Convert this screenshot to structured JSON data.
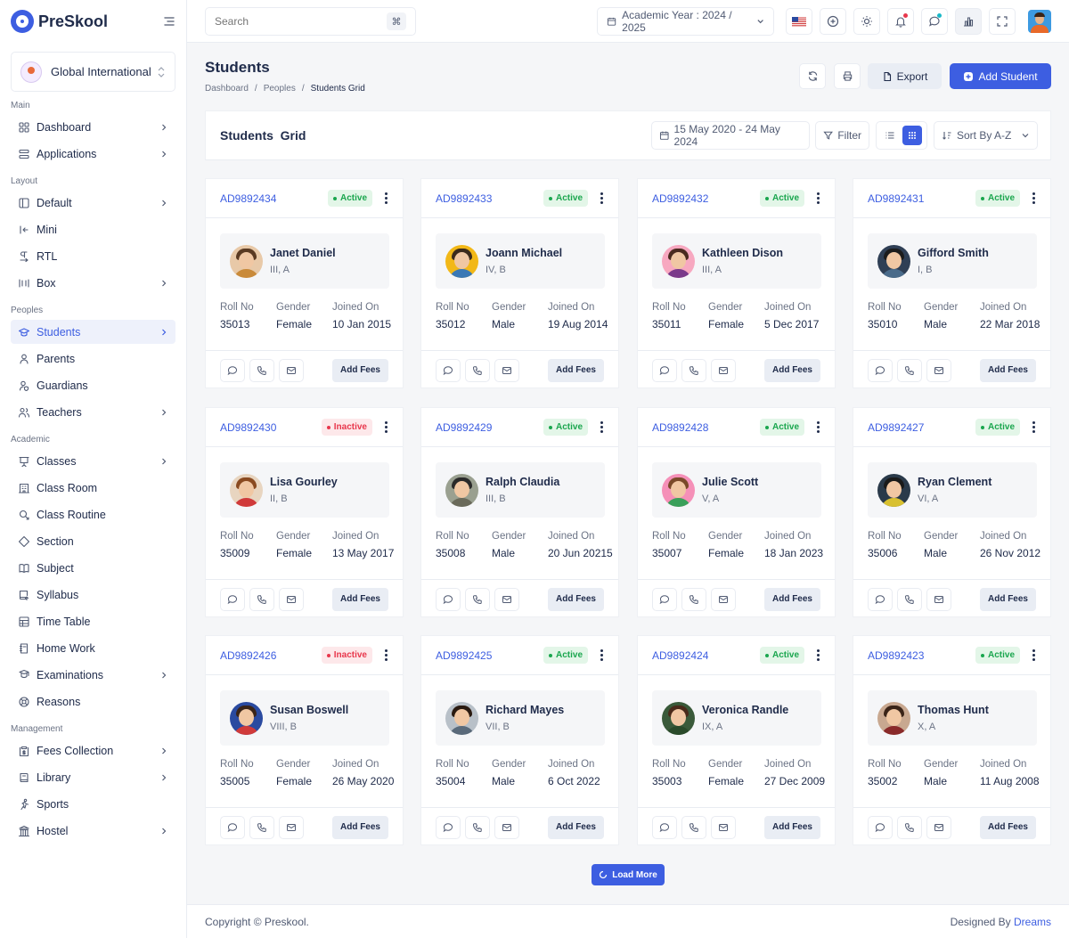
{
  "brand": {
    "name_prefix": "Pre",
    "name_suffix": "Skool"
  },
  "school": {
    "name": "Global International"
  },
  "sidebar": {
    "sections": [
      {
        "title": "Main",
        "items": [
          {
            "label": "Dashboard",
            "icon": "dashboard-icon",
            "chevron": true
          },
          {
            "label": "Applications",
            "icon": "layers-icon",
            "chevron": true
          }
        ]
      },
      {
        "title": "Layout",
        "items": [
          {
            "label": "Default",
            "icon": "layout-default-icon",
            "chevron": true
          },
          {
            "label": "Mini",
            "icon": "layout-mini-icon",
            "chevron": false
          },
          {
            "label": "RTL",
            "icon": "text-direction-icon",
            "chevron": false
          },
          {
            "label": "Box",
            "icon": "layout-box-icon",
            "chevron": true
          }
        ]
      },
      {
        "title": "Peoples",
        "items": [
          {
            "label": "Students",
            "icon": "school-icon",
            "chevron": true,
            "active": true
          },
          {
            "label": "Parents",
            "icon": "user-icon",
            "chevron": false
          },
          {
            "label": "Guardians",
            "icon": "user-shield-icon",
            "chevron": false
          },
          {
            "label": "Teachers",
            "icon": "users-icon",
            "chevron": true
          }
        ]
      },
      {
        "title": "Academic",
        "items": [
          {
            "label": "Classes",
            "icon": "presentation-icon",
            "chevron": true
          },
          {
            "label": "Class Room",
            "icon": "building-icon",
            "chevron": false
          },
          {
            "label": "Class Routine",
            "icon": "bell-school-icon",
            "chevron": false
          },
          {
            "label": "Section",
            "icon": "square-rotated-icon",
            "chevron": false
          },
          {
            "label": "Subject",
            "icon": "book-icon",
            "chevron": false
          },
          {
            "label": "Syllabus",
            "icon": "book-upload-icon",
            "chevron": false
          },
          {
            "label": "Time Table",
            "icon": "table-icon",
            "chevron": false
          },
          {
            "label": "Home Work",
            "icon": "notebook-icon",
            "chevron": false
          },
          {
            "label": "Examinations",
            "icon": "exam-icon",
            "chevron": true
          },
          {
            "label": "Reasons",
            "icon": "lifebuoy-icon",
            "chevron": false
          }
        ]
      },
      {
        "title": "Management",
        "items": [
          {
            "label": "Fees Collection",
            "icon": "report-money-icon",
            "chevron": true
          },
          {
            "label": "Library",
            "icon": "library-icon",
            "chevron": true
          },
          {
            "label": "Sports",
            "icon": "run-icon",
            "chevron": false
          },
          {
            "label": "Hostel",
            "icon": "building-bank-icon",
            "chevron": true
          }
        ]
      }
    ]
  },
  "topbar": {
    "search_placeholder": "Search",
    "search_shortcut": "⌘",
    "academic_year": "Academic Year : 2024 / 2025"
  },
  "page": {
    "title": "Students",
    "breadcrumbs": [
      "Dashboard",
      "Peoples",
      "Students Grid"
    ],
    "export_label": "Export",
    "add_label": "Add Student"
  },
  "grid": {
    "title": "Students  Grid",
    "date_range": "15 May 2020 - 24 May 2024",
    "filter_label": "Filter",
    "sort_label": "Sort By A-Z"
  },
  "labels": {
    "roll": "Roll No",
    "gender": "Gender",
    "joined": "Joined On",
    "fees": "Add Fees"
  },
  "cards": [
    {
      "id": "AD9892434",
      "status": "Active",
      "name": "Janet Daniel",
      "class": "III, A",
      "roll": "35013",
      "gender": "Female",
      "joined": "10 Jan 2015",
      "avatar_bg": "#e8c9a8",
      "hair": "#5a3a22",
      "body": "#c98a3a"
    },
    {
      "id": "AD9892433",
      "status": "Active",
      "name": "Joann Michael",
      "class": "IV, B",
      "roll": "35012",
      "gender": "Male",
      "joined": "19 Aug 2014",
      "avatar_bg": "#f2b818",
      "hair": "#3b2a1c",
      "body": "#3a78b5"
    },
    {
      "id": "AD9892432",
      "status": "Active",
      "name": "Kathleen Dison",
      "class": "III, A",
      "roll": "35011",
      "gender": "Female",
      "joined": "5 Dec 2017",
      "avatar_bg": "#f7a8c0",
      "hair": "#4a2b1f",
      "body": "#7a3a8a"
    },
    {
      "id": "AD9892431",
      "status": "Active",
      "name": "Gifford Smith",
      "class": "I, B",
      "roll": "35010",
      "gender": "Male",
      "joined": "22 Mar 2018",
      "avatar_bg": "#2f3f55",
      "hair": "#1c1c1c",
      "body": "#4a6b8a"
    },
    {
      "id": "AD9892430",
      "status": "Inactive",
      "name": "Lisa Gourley",
      "class": "II, B",
      "roll": "35009",
      "gender": "Female",
      "joined": "13 May 2017",
      "avatar_bg": "#e8d5c0",
      "hair": "#8a4a20",
      "body": "#d03a3a"
    },
    {
      "id": "AD9892429",
      "status": "Active",
      "name": "Ralph Claudia",
      "class": "III, B",
      "roll": "35008",
      "gender": "Male",
      "joined": "20 Jun 20215",
      "avatar_bg": "#9aa090",
      "hair": "#2a2a2a",
      "body": "#6a6a5a"
    },
    {
      "id": "AD9892428",
      "status": "Active",
      "name": "Julie Scott",
      "class": "V, A",
      "roll": "35007",
      "gender": "Female",
      "joined": "18 Jan 2023",
      "avatar_bg": "#f590b8",
      "hair": "#7a4a2a",
      "body": "#3aa05a"
    },
    {
      "id": "AD9892427",
      "status": "Active",
      "name": "Ryan Clement",
      "class": "VI, A",
      "roll": "35006",
      "gender": "Male",
      "joined": "26 Nov 2012",
      "avatar_bg": "#2a3a4a",
      "hair": "#1a1a1a",
      "body": "#d8c030"
    },
    {
      "id": "AD9892426",
      "status": "Inactive",
      "name": "Susan Boswell",
      "class": "VIII, B",
      "roll": "35005",
      "gender": "Female",
      "joined": "26 May 2020",
      "avatar_bg": "#2a4aa0",
      "hair": "#3a2418",
      "body": "#d03a3a"
    },
    {
      "id": "AD9892425",
      "status": "Active",
      "name": "Richard Mayes",
      "class": "VII, B",
      "roll": "35004",
      "gender": "Male",
      "joined": "6 Oct 2022",
      "avatar_bg": "#b8c0c8",
      "hair": "#2a1a10",
      "body": "#5a6a7a"
    },
    {
      "id": "AD9892424",
      "status": "Active",
      "name": "Veronica Randle",
      "class": "IX, A",
      "roll": "35003",
      "gender": "Female",
      "joined": "27 Dec 2009",
      "avatar_bg": "#3a5a3a",
      "hair": "#4a2a1a",
      "body": "#2a4a2a"
    },
    {
      "id": "AD9892423",
      "status": "Active",
      "name": "Thomas Hunt",
      "class": "X, A",
      "roll": "35002",
      "gender": "Male",
      "joined": "11 Aug 2008",
      "avatar_bg": "#c8a890",
      "hair": "#3a2418",
      "body": "#8a2a2a"
    }
  ],
  "load_more": "Load More",
  "footer": {
    "copyright": "Copyright © Preskool.",
    "designed_by": "Designed By",
    "designer": "Dreams"
  },
  "colors": {
    "primary": "#3d5ee1",
    "active": "#1aa64e",
    "inactive": "#e8374c"
  }
}
